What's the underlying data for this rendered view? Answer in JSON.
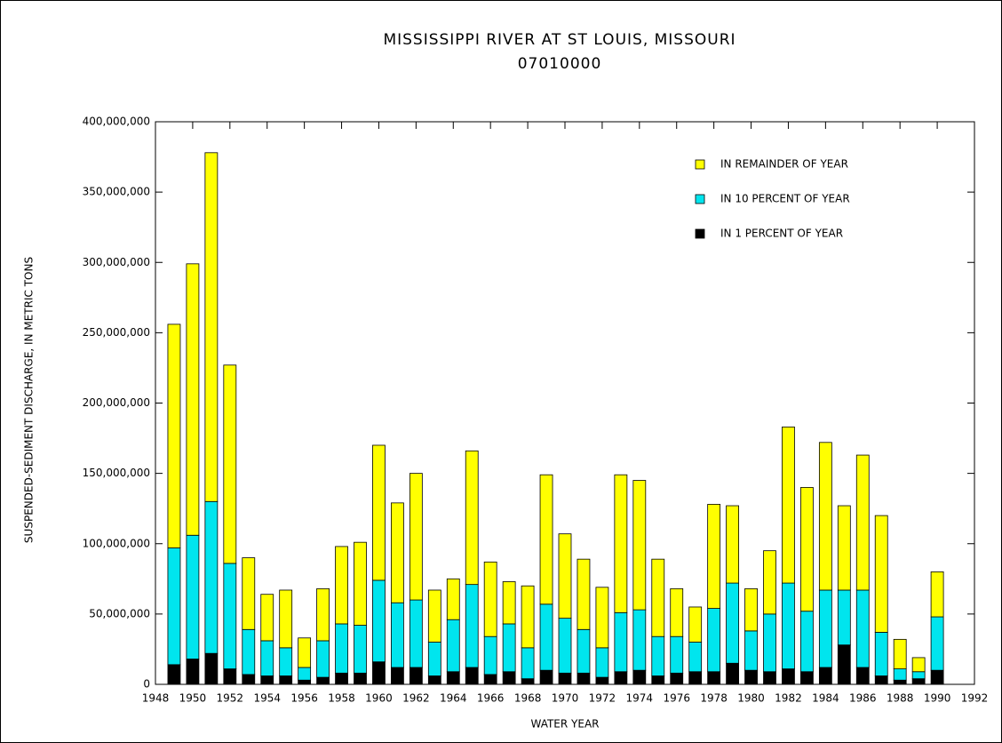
{
  "chart_data": {
    "type": "stacked-bar",
    "title": "MISSISSIPPI RIVER AT ST LOUIS, MISSOURI",
    "subtitle": "07010000",
    "x_label": "WATER YEAR",
    "y_label": "SUSPENDED-SEDIMENT DISCHARGE, IN METRIC TONS",
    "x": [
      1949,
      1950,
      1951,
      1952,
      1953,
      1954,
      1955,
      1956,
      1957,
      1958,
      1959,
      1960,
      1961,
      1962,
      1963,
      1964,
      1965,
      1966,
      1967,
      1968,
      1969,
      1970,
      1971,
      1972,
      1973,
      1974,
      1975,
      1976,
      1977,
      1978,
      1979,
      1980,
      1981,
      1982,
      1983,
      1984,
      1985,
      1986,
      1987,
      1988,
      1989,
      1990
    ],
    "series": [
      {
        "name": "IN 1 PERCENT OF YEAR",
        "color": "#000000",
        "values": [
          14000000,
          18000000,
          22000000,
          11000000,
          7000000,
          6000000,
          6000000,
          3000000,
          5000000,
          8000000,
          8000000,
          16000000,
          12000000,
          12000000,
          6000000,
          9000000,
          12000000,
          7000000,
          9000000,
          4000000,
          10000000,
          8000000,
          8000000,
          5000000,
          9000000,
          10000000,
          6000000,
          8000000,
          9000000,
          9000000,
          15000000,
          10000000,
          9000000,
          11000000,
          9000000,
          12000000,
          28000000,
          12000000,
          6000000,
          3000000,
          4000000,
          10000000
        ]
      },
      {
        "name": "IN 10 PERCENT OF YEAR",
        "color": "#00e5ee",
        "values": [
          83000000,
          88000000,
          108000000,
          75000000,
          32000000,
          25000000,
          20000000,
          9000000,
          26000000,
          35000000,
          34000000,
          58000000,
          46000000,
          48000000,
          24000000,
          37000000,
          59000000,
          27000000,
          34000000,
          22000000,
          47000000,
          39000000,
          31000000,
          21000000,
          42000000,
          43000000,
          28000000,
          26000000,
          21000000,
          45000000,
          57000000,
          28000000,
          41000000,
          61000000,
          43000000,
          55000000,
          39000000,
          55000000,
          31000000,
          8000000,
          5000000,
          38000000
        ]
      },
      {
        "name": "IN REMAINDER OF YEAR",
        "color": "#ffff00",
        "values": [
          159000000,
          193000000,
          248000000,
          141000000,
          51000000,
          33000000,
          41000000,
          21000000,
          37000000,
          55000000,
          59000000,
          96000000,
          71000000,
          90000000,
          37000000,
          29000000,
          95000000,
          53000000,
          30000000,
          44000000,
          92000000,
          60000000,
          50000000,
          43000000,
          98000000,
          92000000,
          55000000,
          34000000,
          25000000,
          74000000,
          55000000,
          30000000,
          45000000,
          111000000,
          88000000,
          105000000,
          60000000,
          96000000,
          83000000,
          21000000,
          10000000,
          32000000
        ]
      }
    ],
    "xlim": [
      1948,
      1992
    ],
    "xticks": [
      1948,
      1950,
      1952,
      1954,
      1956,
      1958,
      1960,
      1962,
      1964,
      1966,
      1968,
      1970,
      1972,
      1974,
      1976,
      1978,
      1980,
      1982,
      1984,
      1986,
      1988,
      1990,
      1992
    ],
    "ylim": [
      0,
      400000000
    ],
    "yticks": [
      0,
      {
        "value": 50000000,
        "label": "50,000,000"
      },
      {
        "value": 100000000,
        "label": "100,000,000"
      },
      {
        "value": 150000000,
        "label": "150,000,000"
      },
      {
        "value": 200000000,
        "label": "200,000,000"
      },
      {
        "value": 250000000,
        "label": "250,000,000"
      },
      {
        "value": 300000000,
        "label": "300,000,000"
      },
      {
        "value": 350000000,
        "label": "350,000,000"
      },
      {
        "value": 400000000,
        "label": "400,000,000"
      }
    ],
    "legend": "upper-right",
    "grid": false
  }
}
